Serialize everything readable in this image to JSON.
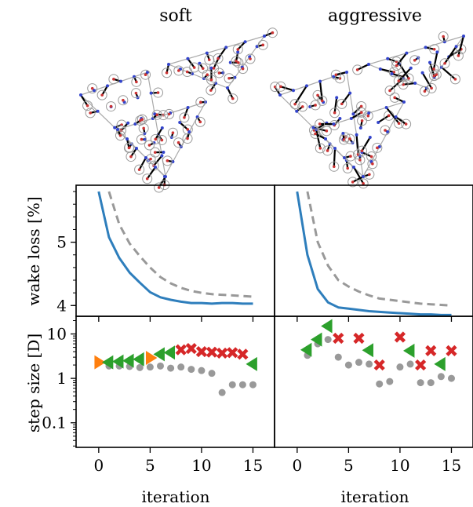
{
  "columns": [
    {
      "title": "soft"
    },
    {
      "title": "aggressive"
    }
  ],
  "ylabels": {
    "loss": "wake loss [%]",
    "step": "step size [D]"
  },
  "xlabel": "iteration",
  "colors": {
    "blue": "#2e7ebc",
    "gray": "#999999",
    "orange": "#ff7f0e",
    "green": "#2ca02c",
    "red": "#d62728",
    "dot": "#999999"
  },
  "chart_data": [
    {
      "type": "line",
      "panel": "loss-soft",
      "xlim": [
        -2.2,
        17.1
      ],
      "ylim": [
        3.83,
        5.9
      ],
      "yticks": [
        4,
        5
      ],
      "xticks": [
        0,
        5,
        10,
        15
      ],
      "series": [
        {
          "x": [
            0,
            1,
            2,
            3,
            4,
            5,
            6,
            7,
            8,
            9,
            10,
            11,
            12,
            13,
            14,
            15
          ],
          "values": [
            5.8,
            5.08,
            4.75,
            4.52,
            4.36,
            4.21,
            4.13,
            4.09,
            4.06,
            4.04,
            4.04,
            4.03,
            4.04,
            4.04,
            4.03,
            4.03
          ]
        },
        {
          "x": [
            1,
            2,
            3,
            4,
            5,
            6,
            7,
            8,
            9,
            10,
            11,
            12,
            13,
            14,
            15
          ],
          "values": [
            5.8,
            5.28,
            4.98,
            4.78,
            4.6,
            4.45,
            4.35,
            4.28,
            4.23,
            4.2,
            4.18,
            4.17,
            4.16,
            4.15,
            4.14
          ]
        }
      ]
    },
    {
      "type": "line",
      "panel": "loss-aggressive",
      "xlim": [
        -2.2,
        17.1
      ],
      "ylim": [
        3.83,
        5.9
      ],
      "yticks": [
        4,
        5
      ],
      "xticks": [
        0,
        5,
        10,
        15
      ],
      "series": [
        {
          "x": [
            0,
            1,
            2,
            3,
            4,
            5,
            6,
            7,
            8,
            9,
            10,
            11,
            12,
            13,
            14,
            15
          ],
          "values": [
            5.8,
            4.8,
            4.26,
            4.05,
            3.97,
            3.95,
            3.93,
            3.91,
            3.9,
            3.89,
            3.88,
            3.87,
            3.86,
            3.86,
            3.85,
            3.85
          ]
        },
        {
          "x": [
            1,
            2,
            3,
            4,
            5,
            6,
            7,
            8,
            9,
            10,
            11,
            12,
            13,
            14,
            15
          ],
          "values": [
            5.8,
            5.0,
            4.63,
            4.4,
            4.3,
            4.22,
            4.16,
            4.11,
            4.09,
            4.07,
            4.05,
            4.03,
            4.02,
            4.01,
            4.0
          ]
        }
      ]
    },
    {
      "type": "scatter",
      "panel": "step-soft",
      "xlim": [
        -2.2,
        17.1
      ],
      "ylim": [
        0.028,
        25
      ],
      "yscale": "log",
      "yticks": [
        0.1,
        1,
        10
      ],
      "yticklabels": [
        "0.1",
        "1",
        "10"
      ],
      "xticks": [
        0,
        5,
        10,
        15
      ],
      "series": [
        {
          "marker": "dot",
          "x": [
            1,
            2,
            3,
            4,
            5,
            6,
            7,
            8,
            9,
            10,
            11,
            12,
            13,
            14,
            15
          ],
          "values": [
            1.9,
            1.9,
            1.85,
            1.75,
            1.8,
            1.9,
            1.7,
            1.8,
            1.6,
            1.5,
            1.3,
            0.48,
            0.72,
            0.72,
            0.72
          ]
        },
        {
          "marker": "triangle-right",
          "x": [
            0,
            5
          ],
          "values": [
            2.3,
            2.9
          ]
        },
        {
          "marker": "triangle-left",
          "x": [
            1,
            2,
            3,
            4,
            6,
            7,
            15
          ],
          "values": [
            2.3,
            2.4,
            2.5,
            2.7,
            3.5,
            3.8,
            2.1
          ]
        },
        {
          "marker": "x",
          "x": [
            8,
            9,
            10,
            11,
            12,
            13,
            14
          ],
          "values": [
            4.4,
            4.7,
            4.0,
            3.9,
            3.7,
            3.8,
            3.5
          ]
        }
      ]
    },
    {
      "type": "scatter",
      "panel": "step-aggressive",
      "xlim": [
        -2.2,
        17.1
      ],
      "ylim": [
        0.028,
        25
      ],
      "yscale": "log",
      "yticks": [
        0.1,
        1,
        10
      ],
      "yticklabels": [
        "0.1",
        "1",
        "10"
      ],
      "xticks": [
        0,
        5,
        10,
        15
      ],
      "series": [
        {
          "marker": "dot",
          "x": [
            1,
            2,
            3,
            4,
            5,
            6,
            7,
            8,
            9,
            10,
            11,
            12,
            13,
            14,
            15
          ],
          "values": [
            3.3,
            6.0,
            7.5,
            3.0,
            2.0,
            2.3,
            2.1,
            0.75,
            0.85,
            1.8,
            2.1,
            0.8,
            0.8,
            1.1,
            1.0
          ]
        },
        {
          "marker": "triangle-left",
          "x": [
            1,
            2,
            3,
            7,
            11,
            14
          ],
          "values": [
            4.4,
            7.5,
            15.0,
            4.3,
            4.2,
            2.1
          ]
        },
        {
          "marker": "x",
          "x": [
            4,
            6,
            8,
            10,
            12,
            13,
            15
          ],
          "values": [
            8.0,
            8.0,
            2.0,
            8.5,
            2.0,
            4.2,
            4.2
          ]
        }
      ]
    }
  ]
}
